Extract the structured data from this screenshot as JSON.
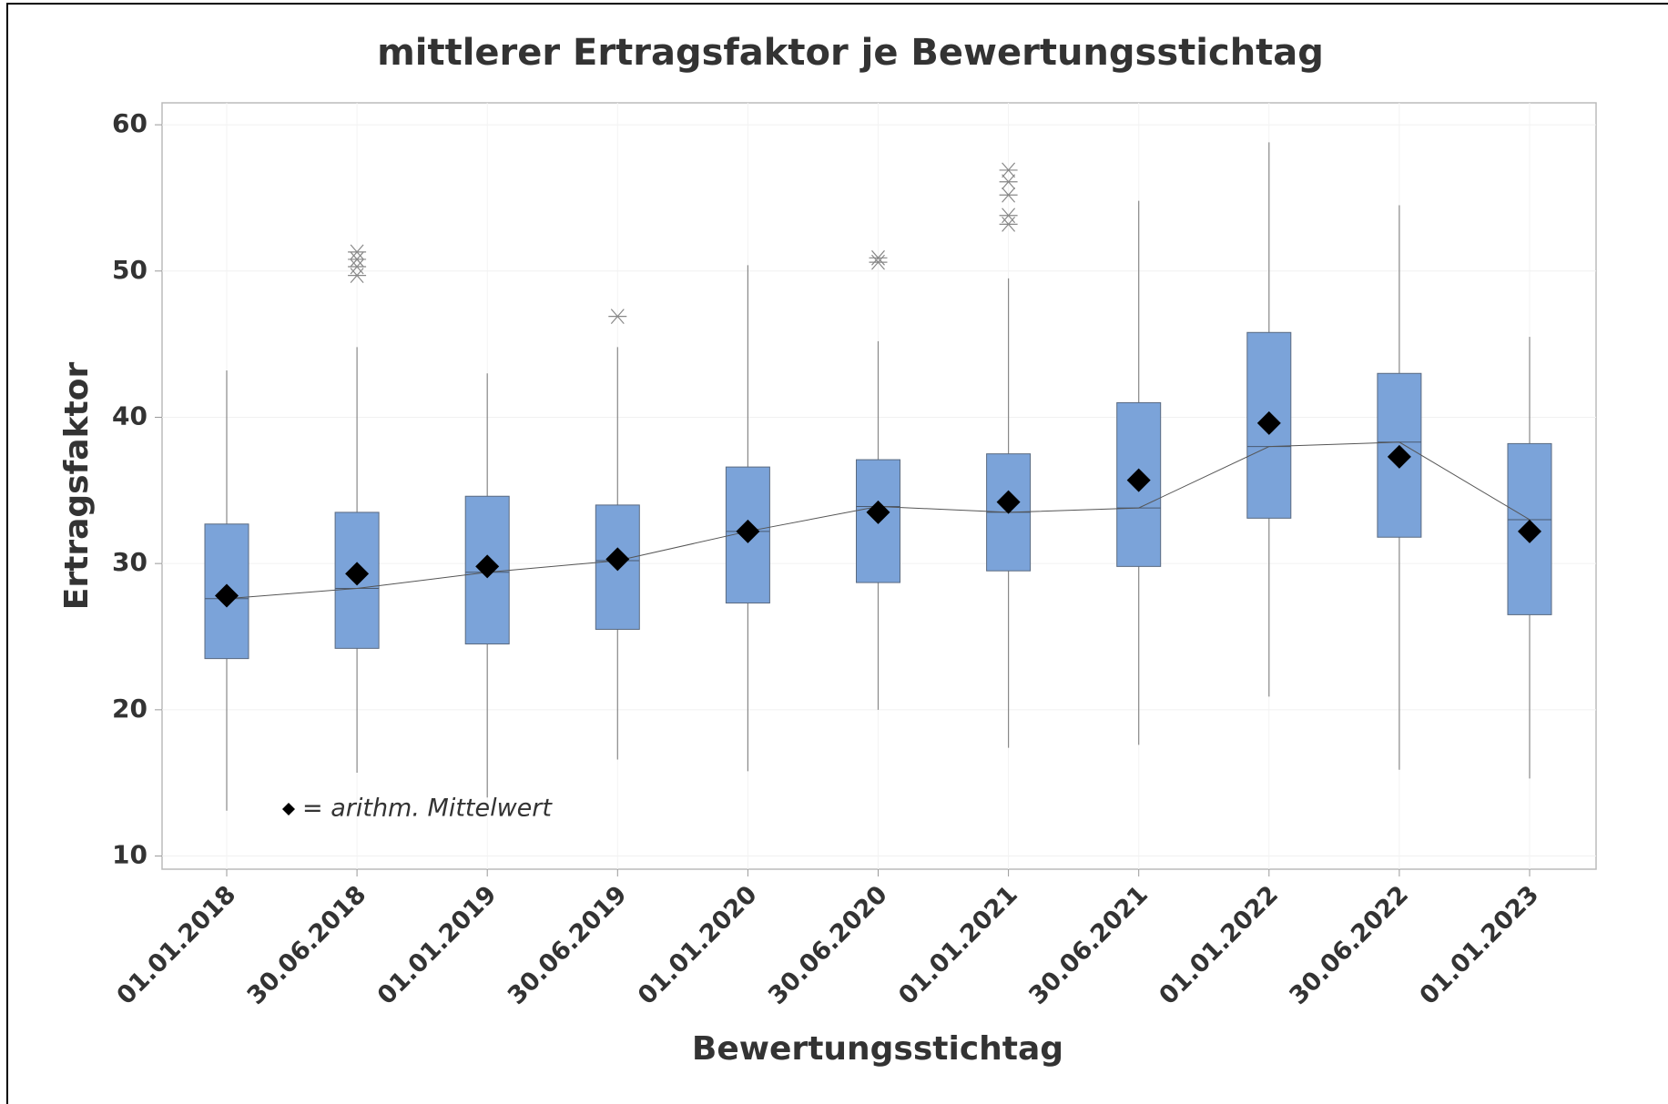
{
  "chart_data": {
    "type": "box",
    "title": "mittlerer Ertragsfaktor je Bewertungsstichtag",
    "x_label": "Bewertungsstichtag",
    "y_label": "Ertragsfaktor",
    "annotation": "= arithm. Mittelwert",
    "color": "#7ba3d9",
    "mean_color": "#000000",
    "categories": [
      "01.01.2018",
      "30.06.2018",
      "01.01.2019",
      "30.06.2019",
      "01.01.2020",
      "30.06.2020",
      "01.01.2021",
      "30.06.2021",
      "01.01.2022",
      "30.06.2022",
      "01.01.2023"
    ],
    "boxes": [
      {
        "low": 13.1,
        "q1": 23.5,
        "median": 27.6,
        "q3": 32.7,
        "high": 43.2,
        "mean": 27.8,
        "outliers": []
      },
      {
        "low": 15.7,
        "q1": 24.2,
        "median": 28.3,
        "q3": 33.5,
        "high": 44.8,
        "mean": 29.3,
        "outliers": [
          51.3,
          50.8,
          50.3,
          49.7
        ]
      },
      {
        "low": 14.0,
        "q1": 24.5,
        "median": 29.4,
        "q3": 34.6,
        "high": 43.0,
        "mean": 29.8,
        "outliers": []
      },
      {
        "low": 16.6,
        "q1": 25.5,
        "median": 30.2,
        "q3": 34.0,
        "high": 44.8,
        "mean": 30.3,
        "outliers": [
          46.9
        ]
      },
      {
        "low": 15.8,
        "q1": 27.3,
        "median": 32.2,
        "q3": 36.6,
        "high": 50.4,
        "mean": 32.2,
        "outliers": []
      },
      {
        "low": 20.0,
        "q1": 28.7,
        "median": 33.9,
        "q3": 37.1,
        "high": 45.2,
        "mean": 33.5,
        "outliers": [
          50.9,
          50.6
        ]
      },
      {
        "low": 17.4,
        "q1": 29.5,
        "median": 33.5,
        "q3": 37.5,
        "high": 49.5,
        "mean": 34.2,
        "outliers": [
          56.9,
          56.1,
          55.2,
          53.8,
          53.2
        ]
      },
      {
        "low": 17.6,
        "q1": 29.8,
        "median": 33.8,
        "q3": 41.0,
        "high": 54.8,
        "mean": 35.7,
        "outliers": []
      },
      {
        "low": 20.9,
        "q1": 33.1,
        "median": 38.0,
        "q3": 45.8,
        "high": 58.8,
        "mean": 39.6,
        "outliers": []
      },
      {
        "low": 15.9,
        "q1": 31.8,
        "median": 38.3,
        "q3": 43.0,
        "high": 54.5,
        "mean": 37.3,
        "outliers": []
      },
      {
        "low": 15.3,
        "q1": 26.5,
        "median": 33.0,
        "q3": 38.2,
        "high": 45.5,
        "mean": 32.2,
        "outliers": []
      }
    ],
    "ylim": [
      9.1,
      61.5
    ],
    "yticks": [
      10,
      20,
      30,
      40,
      50,
      60
    ],
    "grid": true
  }
}
